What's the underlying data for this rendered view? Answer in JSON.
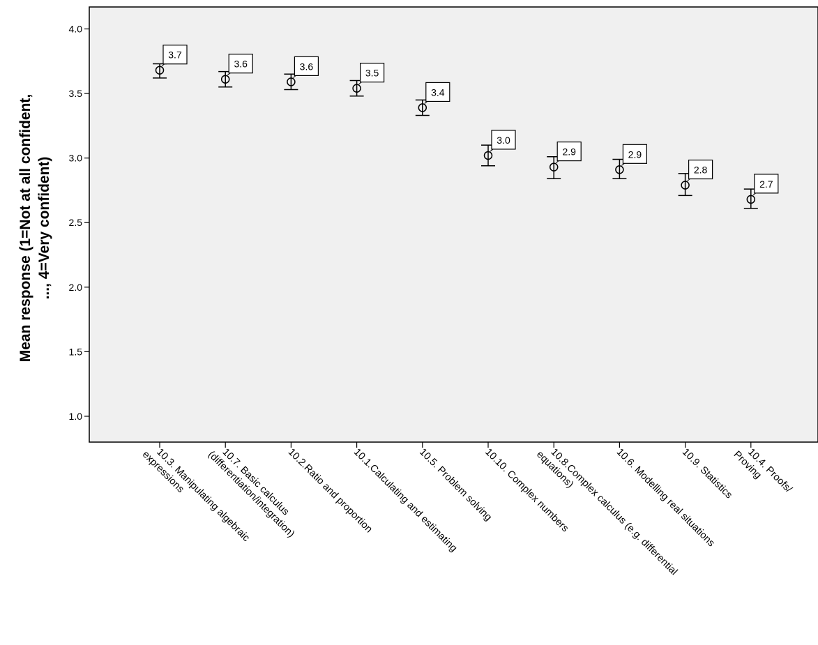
{
  "chart_data": {
    "type": "scatter",
    "title": "",
    "xlabel": "",
    "ylabel_lines": [
      "Mean response (1=Not at all confident,",
      "..., 4=Very confident)"
    ],
    "ylim": [
      0.8,
      4.17
    ],
    "y_ticks": [
      "1.0",
      "1.5",
      "2.0",
      "2.5",
      "3.0",
      "3.5",
      "4.0"
    ],
    "y_tick_values": [
      1.0,
      1.5,
      2.0,
      2.5,
      3.0,
      3.5,
      4.0
    ],
    "grid": false,
    "plot_background": "#f0f0f0",
    "marker": "open-circle",
    "error_bars": true,
    "categories": [
      {
        "lines": [
          "10.3. Manipulating algebraic",
          "expressions"
        ]
      },
      {
        "lines": [
          "10.7. Basic calculus",
          "(differentiation/integration)"
        ]
      },
      {
        "lines": [
          "10.2.Ratio and proportion"
        ]
      },
      {
        "lines": [
          "10.1.Calculating and estimating"
        ]
      },
      {
        "lines": [
          "10.5. Problem solving"
        ]
      },
      {
        "lines": [
          "10.10. Complex numbers"
        ]
      },
      {
        "lines": [
          "10.8.Complex calculus (e.g. differential",
          "equations)"
        ]
      },
      {
        "lines": [
          "10.6. Modelling real situations"
        ]
      },
      {
        "lines": [
          "10.9. Statistics"
        ]
      },
      {
        "lines": [
          "10.4. Proofs/",
          "Proving"
        ]
      }
    ],
    "values": [
      3.68,
      3.61,
      3.59,
      3.54,
      3.39,
      3.02,
      2.93,
      2.91,
      2.79,
      2.68
    ],
    "ci_low": [
      3.62,
      3.55,
      3.53,
      3.48,
      3.33,
      2.94,
      2.84,
      2.84,
      2.71,
      2.61
    ],
    "ci_high": [
      3.73,
      3.67,
      3.65,
      3.6,
      3.45,
      3.1,
      3.01,
      2.99,
      2.88,
      2.76
    ],
    "data_labels": [
      "3.7",
      "3.6",
      "3.6",
      "3.5",
      "3.4",
      "3.0",
      "2.9",
      "2.9",
      "2.8",
      "2.7"
    ]
  }
}
